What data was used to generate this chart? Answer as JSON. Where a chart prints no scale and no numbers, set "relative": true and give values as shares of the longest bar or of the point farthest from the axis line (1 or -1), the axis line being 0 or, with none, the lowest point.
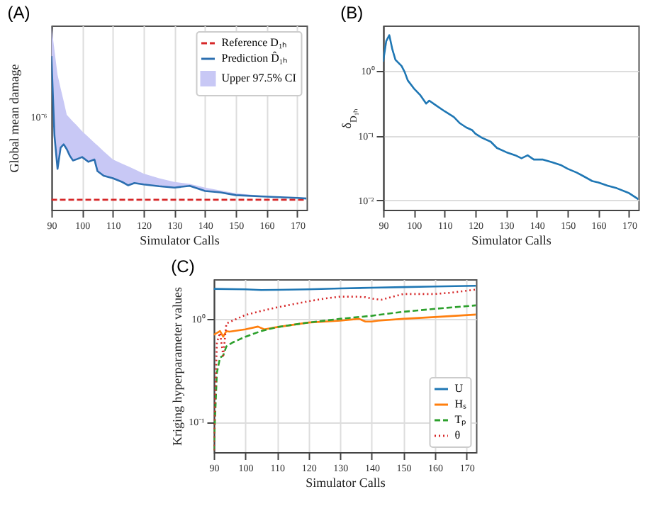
{
  "chart_data": [
    {
      "type": "line",
      "title": "(A)",
      "xlabel": "Simulator Calls",
      "ylabel": "Global mean damage",
      "relative": true,
      "grid": "x",
      "legend": "top right",
      "annotations": [
        "10⁻⁶"
      ],
      "xlim": [
        90,
        173
      ],
      "xticks": [
        90,
        100,
        110,
        120,
        130,
        140,
        150,
        160,
        170
      ],
      "series": [
        {
          "name": "Reference D₁ₕ",
          "color": "#d62728",
          "line_style": "dashed",
          "x": [
            90,
            173
          ],
          "values": [
            0.065,
            0.065
          ]
        },
        {
          "name": "Prediction D̂₁ₕ",
          "color": "#2c6fb0",
          "x": [
            90,
            91,
            92,
            93,
            94,
            95,
            96,
            97,
            98,
            100,
            102,
            104,
            105,
            107,
            110,
            113,
            115,
            117,
            120,
            125,
            130,
            135,
            140,
            145,
            150,
            160,
            170,
            173
          ],
          "values": [
            1.0,
            0.481,
            0.266,
            0.404,
            0.426,
            0.394,
            0.351,
            0.321,
            0.327,
            0.343,
            0.312,
            0.327,
            0.251,
            0.221,
            0.205,
            0.181,
            0.159,
            0.174,
            0.165,
            0.153,
            0.144,
            0.156,
            0.122,
            0.113,
            0.095,
            0.085,
            0.077,
            0.073
          ],
          "lower": [
            1.0,
            0.481,
            0.266,
            0.404,
            0.426,
            0.394,
            0.351,
            0.321,
            0.327,
            0.343,
            0.312,
            0.327,
            0.251,
            0.221,
            0.205,
            0.181,
            0.159,
            0.174,
            0.165,
            0.153,
            0.144,
            0.156,
            0.122,
            0.113,
            0.095,
            0.085,
            0.077,
            0.073
          ],
          "upper": [
            1.199,
            1.038,
            0.878,
            0.791,
            0.707,
            0.618,
            0.596,
            0.574,
            0.554,
            0.511,
            0.474,
            0.436,
            0.418,
            0.381,
            0.327,
            0.3,
            0.282,
            0.264,
            0.235,
            0.205,
            0.181,
            0.168,
            0.144,
            0.126,
            0.107,
            0.089,
            0.079,
            0.077
          ]
        },
        {
          "name": "Upper 97.5% CI",
          "type": "area",
          "color": "#c8c8f5"
        }
      ]
    },
    {
      "type": "line",
      "title": "(B)",
      "xlabel": "Simulator Calls",
      "ylabel": "δ$_{D₁ₕ}$",
      "log": "y",
      "grid": "y",
      "xlim": [
        90,
        173
      ],
      "xticks": [
        90,
        100,
        110,
        120,
        130,
        140,
        150,
        160,
        170
      ],
      "ylim": [
        0.0072,
        5.07
      ],
      "yticks": [
        {
          "value": 0.01,
          "label": "10⁻²"
        },
        {
          "value": 0.1,
          "label": "10⁻¹"
        },
        {
          "value": 1,
          "label": "10⁰"
        }
      ],
      "x": [
        90,
        91,
        92,
        93,
        94,
        96,
        97,
        98,
        100,
        102,
        104,
        105,
        107,
        110,
        113,
        115,
        117,
        119,
        120,
        122,
        125,
        127,
        130,
        133,
        135,
        137,
        139,
        142,
        145,
        148,
        150,
        153,
        155,
        158,
        160,
        163,
        166,
        170,
        173
      ],
      "series": [
        {
          "color": "#1f77b4",
          "values": [
            1.4,
            2.9,
            3.6,
            2.17,
            1.5,
            1.2,
            0.97,
            0.72,
            0.54,
            0.43,
            0.315,
            0.35,
            0.3,
            0.24,
            0.195,
            0.156,
            0.135,
            0.122,
            0.108,
            0.094,
            0.081,
            0.065,
            0.056,
            0.05,
            0.045,
            0.05,
            0.043,
            0.043,
            0.039,
            0.035,
            0.031,
            0.027,
            0.024,
            0.02,
            0.019,
            0.017,
            0.0155,
            0.013,
            0.0105
          ]
        }
      ]
    },
    {
      "type": "line",
      "title": "(C)",
      "xlabel": "Simulator Calls",
      "ylabel": "Kriging hyperparameter values",
      "log": "y",
      "grid": true,
      "legend": "bottom right",
      "xlim": [
        90,
        173
      ],
      "xticks": [
        90,
        100,
        110,
        120,
        130,
        140,
        150,
        160,
        170
      ],
      "ylim": [
        0.051,
        2.42
      ],
      "yticks": [
        {
          "value": 0.1,
          "label": "10⁻¹"
        },
        {
          "value": 1,
          "label": "10⁰"
        }
      ],
      "series": [
        {
          "name": "U",
          "color": "#1f77b4",
          "x": [
            90,
            100,
            105,
            110,
            120,
            130,
            140,
            150,
            160,
            173
          ],
          "values": [
            1.95,
            1.93,
            1.9,
            1.91,
            1.93,
            1.97,
            2.0,
            2.03,
            2.06,
            2.09
          ]
        },
        {
          "name": "Hₛ",
          "color": "#ff7f0e",
          "x": [
            90,
            91,
            92,
            93,
            94,
            95,
            100,
            104,
            106,
            110,
            120,
            130,
            136,
            138,
            140,
            142,
            150,
            160,
            173
          ],
          "values": [
            0.7,
            0.73,
            0.76,
            0.67,
            0.76,
            0.75,
            0.79,
            0.84,
            0.79,
            0.83,
            0.92,
            0.96,
            1.0,
            0.94,
            0.94,
            0.96,
            1.0,
            1.04,
            1.1
          ]
        },
        {
          "name": "Tₚ",
          "color": "#2ca02c",
          "line_style": "dashed",
          "x": [
            90,
            91,
            92,
            93,
            94,
            96,
            100,
            105,
            110,
            120,
            130,
            140,
            150,
            160,
            173
          ],
          "values": [
            0.053,
            0.3,
            0.42,
            0.44,
            0.54,
            0.59,
            0.67,
            0.76,
            0.83,
            0.92,
            1.0,
            1.07,
            1.17,
            1.25,
            1.35
          ]
        },
        {
          "name": "θ",
          "color": "#d62728",
          "line_style": "dotted",
          "x": [
            90,
            91,
            92,
            93,
            94,
            96,
            100,
            105,
            110,
            120,
            125,
            130,
            135,
            138,
            140,
            143,
            146,
            150,
            160,
            165,
            173
          ],
          "values": [
            0.053,
            0.59,
            0.73,
            0.44,
            0.9,
            0.96,
            1.09,
            1.19,
            1.29,
            1.48,
            1.57,
            1.64,
            1.64,
            1.62,
            1.57,
            1.53,
            1.62,
            1.74,
            1.74,
            1.79,
            1.92
          ]
        }
      ]
    }
  ]
}
